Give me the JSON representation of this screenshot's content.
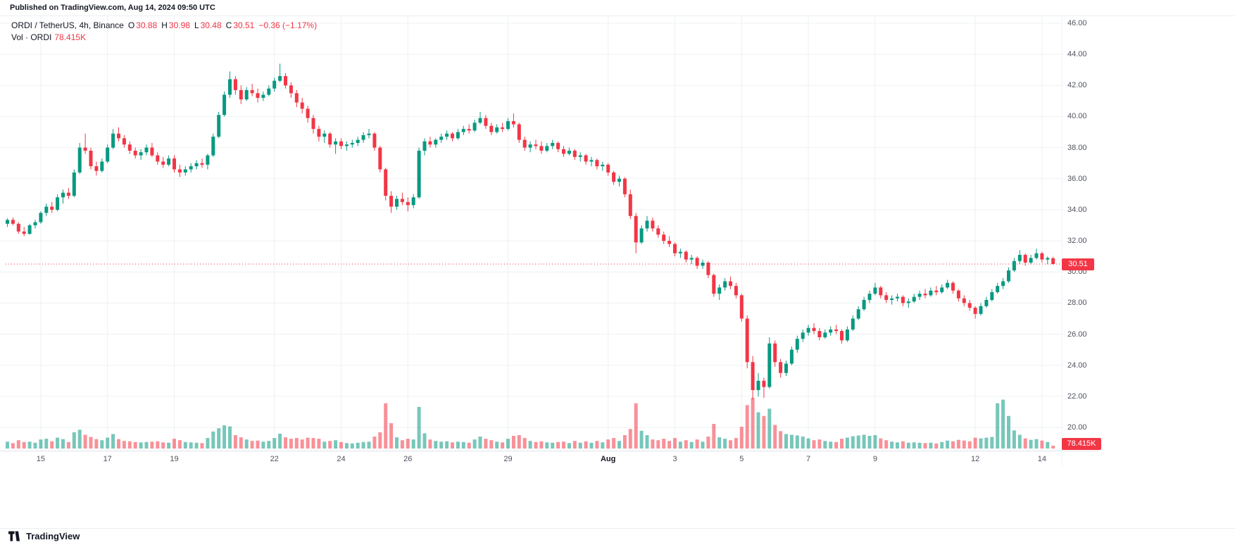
{
  "header": {
    "published_text": "Published on TradingView.com, Aug 14, 2024 09:50 UTC"
  },
  "legend": {
    "symbol": "ORDI / TetherUS, 4h, Binance",
    "o_label": "O",
    "o": "30.88",
    "h_label": "H",
    "h": "30.98",
    "l_label": "L",
    "l": "30.48",
    "c_label": "C",
    "c": "30.51",
    "change": "−0.36 (−1.17%)",
    "vol_label": "Vol · ORDI",
    "vol": "78.415K"
  },
  "price_badge": "30.51",
  "volume_badge": "78.415K",
  "footer": {
    "brand": "TradingView"
  },
  "colors": {
    "up": "#089981",
    "down": "#f23645",
    "vol_up": "rgba(8,153,129,0.55)",
    "vol_down": "rgba(242,54,69,0.55)",
    "grid": "#eef0f3",
    "axis_text": "#50535e",
    "dark_text": "#131722",
    "badge_bg": "#f23645"
  },
  "chart_data": {
    "type": "candlestick",
    "symbol": "ORDI / TetherUS",
    "interval": "4h",
    "exchange": "Binance",
    "last_price": 30.51,
    "last_volume_k": 78.415,
    "price_axis": {
      "min": 20,
      "max": 46,
      "step": 2,
      "labels": [
        "46.00",
        "44.00",
        "42.00",
        "40.00",
        "38.00",
        "36.00",
        "34.00",
        "32.00",
        "30.00",
        "28.00",
        "26.00",
        "24.00",
        "22.00",
        "20.00"
      ]
    },
    "time_axis": {
      "ticks": [
        {
          "i": 6,
          "label": "15"
        },
        {
          "i": 18,
          "label": "17"
        },
        {
          "i": 30,
          "label": "19"
        },
        {
          "i": 48,
          "label": "22"
        },
        {
          "i": 60,
          "label": "24"
        },
        {
          "i": 72,
          "label": "26"
        },
        {
          "i": 90,
          "label": "29"
        },
        {
          "i": 108,
          "label": "Aug",
          "major": true
        },
        {
          "i": 120,
          "label": "3"
        },
        {
          "i": 132,
          "label": "5"
        },
        {
          "i": 144,
          "label": "7"
        },
        {
          "i": 156,
          "label": "9"
        },
        {
          "i": 174,
          "label": "12"
        },
        {
          "i": 186,
          "label": "14"
        }
      ]
    },
    "ohlc_format": [
      "open",
      "high",
      "low",
      "close",
      "volume_k"
    ],
    "candles": [
      [
        33.1,
        33.45,
        32.9,
        33.35,
        190
      ],
      [
        33.35,
        33.5,
        33.0,
        33.1,
        150
      ],
      [
        33.1,
        33.2,
        32.45,
        32.6,
        230
      ],
      [
        32.6,
        32.9,
        32.3,
        32.45,
        180
      ],
      [
        32.45,
        33.1,
        32.4,
        33.0,
        190
      ],
      [
        33.0,
        33.35,
        32.8,
        33.2,
        160
      ],
      [
        33.2,
        33.9,
        33.1,
        33.8,
        250
      ],
      [
        33.8,
        34.4,
        33.6,
        34.2,
        270
      ],
      [
        34.2,
        34.5,
        33.8,
        34.0,
        200
      ],
      [
        34.0,
        35.0,
        33.9,
        34.8,
        300
      ],
      [
        34.8,
        35.3,
        34.4,
        35.1,
        260
      ],
      [
        35.1,
        35.4,
        34.7,
        34.9,
        180
      ],
      [
        34.9,
        36.6,
        34.8,
        36.4,
        450
      ],
      [
        36.4,
        38.3,
        36.3,
        38.0,
        520
      ],
      [
        38.0,
        38.9,
        37.6,
        37.8,
        380
      ],
      [
        37.8,
        38.0,
        36.6,
        36.8,
        320
      ],
      [
        36.8,
        37.1,
        36.2,
        36.5,
        260
      ],
      [
        36.5,
        37.3,
        36.4,
        37.1,
        230
      ],
      [
        37.1,
        38.2,
        37.0,
        38.0,
        300
      ],
      [
        38.0,
        39.2,
        37.9,
        38.9,
        400
      ],
      [
        38.9,
        39.3,
        38.4,
        38.6,
        260
      ],
      [
        38.6,
        38.8,
        38.0,
        38.2,
        210
      ],
      [
        38.2,
        38.4,
        37.6,
        37.8,
        200
      ],
      [
        37.8,
        38.0,
        37.3,
        37.5,
        180
      ],
      [
        37.5,
        37.9,
        37.2,
        37.7,
        170
      ],
      [
        37.7,
        38.2,
        37.5,
        38.0,
        180
      ],
      [
        38.0,
        38.3,
        37.4,
        37.5,
        190
      ],
      [
        37.5,
        37.7,
        36.9,
        37.1,
        200
      ],
      [
        37.1,
        37.4,
        36.7,
        36.9,
        170
      ],
      [
        36.9,
        37.5,
        36.8,
        37.3,
        160
      ],
      [
        37.3,
        37.5,
        36.4,
        36.6,
        270
      ],
      [
        36.6,
        36.9,
        36.1,
        36.4,
        230
      ],
      [
        36.4,
        36.8,
        36.2,
        36.6,
        180
      ],
      [
        36.6,
        37.0,
        36.4,
        36.8,
        170
      ],
      [
        36.8,
        37.2,
        36.6,
        37.0,
        160
      ],
      [
        37.0,
        37.3,
        36.7,
        36.9,
        150
      ],
      [
        36.9,
        37.6,
        36.6,
        37.5,
        290
      ],
      [
        37.5,
        38.9,
        37.4,
        38.7,
        470
      ],
      [
        38.7,
        40.3,
        38.6,
        40.1,
        560
      ],
      [
        40.1,
        41.6,
        40.0,
        41.4,
        640
      ],
      [
        41.4,
        42.9,
        41.2,
        42.4,
        610
      ],
      [
        42.4,
        42.6,
        41.4,
        41.7,
        370
      ],
      [
        41.7,
        42.0,
        40.8,
        41.1,
        310
      ],
      [
        41.1,
        41.9,
        41.0,
        41.7,
        250
      ],
      [
        41.7,
        42.1,
        41.3,
        41.5,
        210
      ],
      [
        41.5,
        41.8,
        40.9,
        41.2,
        220
      ],
      [
        41.2,
        41.6,
        41.0,
        41.4,
        190
      ],
      [
        41.4,
        42.0,
        41.3,
        41.8,
        210
      ],
      [
        41.8,
        42.5,
        41.6,
        42.3,
        290
      ],
      [
        42.3,
        43.4,
        42.2,
        42.6,
        410
      ],
      [
        42.6,
        42.8,
        41.8,
        42.0,
        310
      ],
      [
        42.0,
        42.2,
        41.2,
        41.5,
        270
      ],
      [
        41.5,
        41.7,
        40.6,
        40.9,
        290
      ],
      [
        40.9,
        41.2,
        40.2,
        40.5,
        250
      ],
      [
        40.5,
        40.7,
        39.6,
        39.9,
        300
      ],
      [
        39.9,
        40.1,
        38.9,
        39.2,
        290
      ],
      [
        39.2,
        39.4,
        38.4,
        38.7,
        270
      ],
      [
        38.7,
        39.1,
        38.3,
        38.9,
        190
      ],
      [
        38.9,
        39.0,
        38.0,
        38.2,
        210
      ],
      [
        38.2,
        38.6,
        37.6,
        38.4,
        230
      ],
      [
        38.4,
        38.6,
        37.9,
        38.1,
        180
      ],
      [
        38.1,
        38.4,
        37.8,
        38.2,
        150
      ],
      [
        38.2,
        38.5,
        38.0,
        38.3,
        140
      ],
      [
        38.3,
        38.7,
        38.1,
        38.5,
        160
      ],
      [
        38.5,
        39.0,
        38.3,
        38.8,
        180
      ],
      [
        38.8,
        39.2,
        38.6,
        38.9,
        190
      ],
      [
        38.9,
        39.0,
        37.8,
        38.0,
        330
      ],
      [
        38.0,
        38.1,
        36.4,
        36.6,
        450
      ],
      [
        36.6,
        36.7,
        34.6,
        34.9,
        1250
      ],
      [
        34.9,
        35.2,
        33.8,
        34.2,
        700
      ],
      [
        34.2,
        34.9,
        34.0,
        34.7,
        310
      ],
      [
        34.7,
        35.1,
        34.3,
        34.5,
        230
      ],
      [
        34.5,
        34.8,
        33.9,
        34.3,
        270
      ],
      [
        34.3,
        35.0,
        34.1,
        34.8,
        250
      ],
      [
        34.8,
        38.0,
        34.7,
        37.8,
        1150
      ],
      [
        37.8,
        38.6,
        37.5,
        38.4,
        420
      ],
      [
        38.4,
        38.7,
        38.0,
        38.2,
        250
      ],
      [
        38.2,
        38.6,
        38.0,
        38.5,
        210
      ],
      [
        38.5,
        38.9,
        38.3,
        38.7,
        190
      ],
      [
        38.7,
        39.1,
        38.5,
        38.9,
        200
      ],
      [
        38.9,
        39.0,
        38.4,
        38.6,
        170
      ],
      [
        38.6,
        39.2,
        38.5,
        39.0,
        190
      ],
      [
        39.0,
        39.4,
        38.8,
        39.2,
        180
      ],
      [
        39.2,
        39.5,
        38.9,
        39.1,
        160
      ],
      [
        39.1,
        39.8,
        39.0,
        39.6,
        250
      ],
      [
        39.6,
        40.3,
        39.5,
        39.9,
        330
      ],
      [
        39.9,
        40.1,
        39.2,
        39.4,
        270
      ],
      [
        39.4,
        39.6,
        38.8,
        39.0,
        230
      ],
      [
        39.0,
        39.5,
        38.9,
        39.3,
        190
      ],
      [
        39.3,
        39.6,
        39.0,
        39.2,
        170
      ],
      [
        39.2,
        39.9,
        39.1,
        39.7,
        270
      ],
      [
        39.7,
        40.2,
        39.3,
        39.5,
        350
      ],
      [
        39.5,
        39.6,
        38.3,
        38.5,
        370
      ],
      [
        38.5,
        38.7,
        37.8,
        38.0,
        290
      ],
      [
        38.0,
        38.4,
        37.7,
        38.2,
        210
      ],
      [
        38.2,
        38.5,
        37.9,
        38.1,
        180
      ],
      [
        38.1,
        38.4,
        37.6,
        37.8,
        200
      ],
      [
        37.8,
        38.3,
        37.7,
        38.1,
        170
      ],
      [
        38.1,
        38.5,
        37.9,
        38.3,
        160
      ],
      [
        38.3,
        38.4,
        37.7,
        37.9,
        180
      ],
      [
        37.9,
        38.1,
        37.4,
        37.6,
        190
      ],
      [
        37.6,
        38.0,
        37.5,
        37.8,
        150
      ],
      [
        37.8,
        37.9,
        37.2,
        37.4,
        210
      ],
      [
        37.4,
        37.7,
        37.1,
        37.5,
        160
      ],
      [
        37.5,
        37.6,
        36.9,
        37.1,
        200
      ],
      [
        37.1,
        37.4,
        36.8,
        37.2,
        160
      ],
      [
        37.2,
        37.3,
        36.6,
        36.8,
        210
      ],
      [
        36.8,
        37.1,
        36.5,
        36.9,
        170
      ],
      [
        36.9,
        37.0,
        36.2,
        36.4,
        250
      ],
      [
        36.4,
        36.5,
        35.6,
        35.8,
        290
      ],
      [
        35.8,
        36.2,
        35.5,
        36.0,
        210
      ],
      [
        36.0,
        36.1,
        34.8,
        35.0,
        370
      ],
      [
        35.0,
        35.3,
        33.4,
        33.6,
        540
      ],
      [
        33.6,
        33.8,
        31.2,
        31.9,
        1250
      ],
      [
        31.9,
        33.0,
        31.8,
        32.8,
        490
      ],
      [
        32.8,
        33.6,
        32.6,
        33.3,
        370
      ],
      [
        33.3,
        33.5,
        32.6,
        32.8,
        250
      ],
      [
        32.8,
        33.0,
        32.2,
        32.4,
        230
      ],
      [
        32.4,
        32.6,
        31.8,
        32.0,
        270
      ],
      [
        32.0,
        32.3,
        31.6,
        31.8,
        210
      ],
      [
        31.8,
        31.9,
        31.0,
        31.2,
        290
      ],
      [
        31.2,
        31.5,
        30.9,
        31.3,
        190
      ],
      [
        31.3,
        31.4,
        30.6,
        30.8,
        230
      ],
      [
        30.8,
        31.1,
        30.5,
        30.9,
        180
      ],
      [
        30.9,
        31.0,
        30.2,
        30.4,
        250
      ],
      [
        30.4,
        30.8,
        30.2,
        30.6,
        190
      ],
      [
        30.6,
        30.7,
        29.6,
        29.8,
        330
      ],
      [
        29.8,
        29.9,
        28.4,
        28.6,
        680
      ],
      [
        28.6,
        29.2,
        28.2,
        29.0,
        310
      ],
      [
        29.0,
        29.6,
        28.8,
        29.4,
        270
      ],
      [
        29.4,
        29.7,
        28.9,
        29.1,
        230
      ],
      [
        29.1,
        29.3,
        28.3,
        28.5,
        290
      ],
      [
        28.5,
        28.6,
        26.8,
        27.0,
        600
      ],
      [
        27.0,
        27.2,
        23.8,
        24.2,
        1200
      ],
      [
        24.2,
        24.6,
        21.8,
        22.4,
        1400
      ],
      [
        22.4,
        23.5,
        22.0,
        23.0,
        1000
      ],
      [
        23.0,
        23.2,
        21.9,
        22.6,
        900
      ],
      [
        22.6,
        25.8,
        22.5,
        25.4,
        1100
      ],
      [
        25.4,
        25.6,
        23.9,
        24.2,
        650
      ],
      [
        24.2,
        24.4,
        23.2,
        23.5,
        480
      ],
      [
        23.5,
        24.3,
        23.3,
        24.1,
        400
      ],
      [
        24.1,
        25.2,
        24.0,
        25.0,
        380
      ],
      [
        25.0,
        25.9,
        24.8,
        25.7,
        360
      ],
      [
        25.7,
        26.3,
        25.5,
        26.1,
        330
      ],
      [
        26.1,
        26.6,
        25.9,
        26.4,
        280
      ],
      [
        26.4,
        26.7,
        26.0,
        26.2,
        230
      ],
      [
        26.2,
        26.4,
        25.6,
        25.8,
        250
      ],
      [
        25.8,
        26.3,
        25.7,
        26.1,
        210
      ],
      [
        26.1,
        26.5,
        25.9,
        26.3,
        190
      ],
      [
        26.3,
        26.6,
        26.0,
        26.2,
        180
      ],
      [
        26.2,
        26.3,
        25.4,
        25.6,
        270
      ],
      [
        25.6,
        26.5,
        25.5,
        26.3,
        300
      ],
      [
        26.3,
        27.2,
        26.2,
        27.0,
        340
      ],
      [
        27.0,
        27.8,
        26.9,
        27.6,
        360
      ],
      [
        27.6,
        28.4,
        27.5,
        28.2,
        380
      ],
      [
        28.2,
        28.8,
        28.0,
        28.6,
        350
      ],
      [
        28.6,
        29.3,
        28.5,
        29.0,
        370
      ],
      [
        29.0,
        29.1,
        28.3,
        28.5,
        280
      ],
      [
        28.5,
        28.7,
        28.0,
        28.2,
        230
      ],
      [
        28.2,
        28.5,
        27.9,
        28.3,
        190
      ],
      [
        28.3,
        28.6,
        28.1,
        28.4,
        170
      ],
      [
        28.4,
        28.5,
        27.8,
        28.0,
        200
      ],
      [
        28.0,
        28.3,
        27.7,
        28.1,
        160
      ],
      [
        28.1,
        28.6,
        28.0,
        28.4,
        170
      ],
      [
        28.4,
        28.8,
        28.2,
        28.6,
        160
      ],
      [
        28.6,
        28.9,
        28.3,
        28.5,
        150
      ],
      [
        28.5,
        29.0,
        28.4,
        28.8,
        160
      ],
      [
        28.8,
        29.1,
        28.5,
        28.7,
        140
      ],
      [
        28.7,
        29.2,
        28.6,
        29.0,
        180
      ],
      [
        29.0,
        29.5,
        28.9,
        29.3,
        220
      ],
      [
        29.3,
        29.4,
        28.6,
        28.8,
        200
      ],
      [
        28.8,
        28.9,
        28.1,
        28.3,
        240
      ],
      [
        28.3,
        28.5,
        27.8,
        28.0,
        220
      ],
      [
        28.0,
        28.2,
        27.5,
        27.7,
        200
      ],
      [
        27.7,
        27.8,
        27.0,
        27.3,
        300
      ],
      [
        27.3,
        28.0,
        27.2,
        27.8,
        280
      ],
      [
        27.8,
        28.4,
        27.7,
        28.2,
        300
      ],
      [
        28.2,
        28.9,
        28.1,
        28.7,
        320
      ],
      [
        28.7,
        29.3,
        28.6,
        29.1,
        1250
      ],
      [
        29.1,
        29.6,
        28.9,
        29.4,
        1350
      ],
      [
        29.4,
        30.3,
        29.3,
        30.1,
        900
      ],
      [
        30.1,
        30.9,
        30.0,
        30.7,
        500
      ],
      [
        30.7,
        31.4,
        30.5,
        31.1,
        380
      ],
      [
        31.1,
        31.2,
        30.4,
        30.6,
        280
      ],
      [
        30.6,
        31.1,
        30.5,
        30.9,
        240
      ],
      [
        30.9,
        31.5,
        30.8,
        31.2,
        260
      ],
      [
        31.2,
        31.3,
        30.6,
        30.8,
        220
      ],
      [
        30.8,
        31.0,
        30.5,
        30.9,
        180
      ],
      [
        30.88,
        30.98,
        30.48,
        30.51,
        78.415
      ]
    ]
  }
}
